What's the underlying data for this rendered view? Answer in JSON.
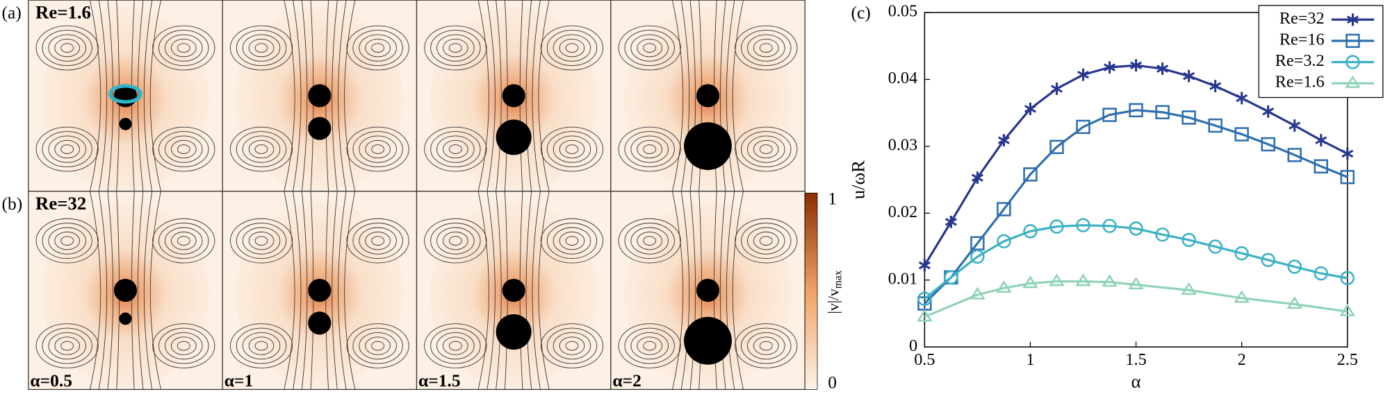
{
  "panels": {
    "row_labels": [
      "(a)",
      "(b)"
    ],
    "re_labels": [
      "Re=1.6",
      "Re=32"
    ],
    "alpha_labels": [
      "α=0.5",
      "α=1",
      "α=1.5",
      "α=2"
    ],
    "omega": "ω",
    "colorbar": {
      "top": "1",
      "bottom": "0",
      "label": "|v|/v",
      "label_sub": "max"
    }
  },
  "chart_data": {
    "type": "line",
    "panel_label": "(c)",
    "x_label": "α",
    "y_label": "u/ωR",
    "xlim": [
      0.5,
      2.5
    ],
    "xticks": [
      0.5,
      1,
      1.5,
      2,
      2.5
    ],
    "ylim": [
      0,
      0.05
    ],
    "yticks": [
      0,
      0.01,
      0.02,
      0.03,
      0.04,
      0.05
    ],
    "legend": "upper right",
    "series": [
      {
        "name": "Re=32",
        "color": "#27368f",
        "marker": "asterisk",
        "x": [
          0.5,
          0.625,
          0.75,
          0.875,
          1,
          1.125,
          1.25,
          1.375,
          1.5,
          1.625,
          1.75,
          1.875,
          2,
          2.125,
          2.25,
          2.375,
          2.5
        ],
        "values": [
          0.0122,
          0.0187,
          0.0253,
          0.0309,
          0.0356,
          0.0386,
          0.0407,
          0.0418,
          0.0421,
          0.0416,
          0.0405,
          0.039,
          0.0372,
          0.0352,
          0.0331,
          0.0309,
          0.0289
        ]
      },
      {
        "name": "Re=16",
        "color": "#2d6eae",
        "marker": "square",
        "x": [
          0.5,
          0.625,
          0.75,
          0.875,
          1,
          1.125,
          1.25,
          1.375,
          1.5,
          1.625,
          1.75,
          1.875,
          2,
          2.125,
          2.25,
          2.375,
          2.5
        ],
        "values": [
          0.0065,
          0.0104,
          0.0155,
          0.0206,
          0.0258,
          0.0299,
          0.0329,
          0.0347,
          0.0354,
          0.0351,
          0.0343,
          0.0331,
          0.0318,
          0.0303,
          0.0287,
          0.027,
          0.0254
        ]
      },
      {
        "name": "Re=3.2",
        "color": "#3bb1c3",
        "marker": "circle",
        "x": [
          0.5,
          0.625,
          0.75,
          0.875,
          1,
          1.125,
          1.25,
          1.375,
          1.5,
          1.625,
          1.75,
          1.875,
          2,
          2.125,
          2.25,
          2.375,
          2.5
        ],
        "values": [
          0.0072,
          0.0104,
          0.0135,
          0.0158,
          0.0173,
          0.018,
          0.0182,
          0.0181,
          0.0177,
          0.0168,
          0.016,
          0.015,
          0.014,
          0.013,
          0.012,
          0.011,
          0.0103
        ]
      },
      {
        "name": "Re=1.6",
        "color": "#8fd3b4",
        "marker": "triangle",
        "x": [
          0.5,
          0.75,
          0.875,
          1,
          1.125,
          1.25,
          1.375,
          1.5,
          1.75,
          2,
          2.25,
          2.5
        ],
        "values": [
          0.0045,
          0.0078,
          0.0088,
          0.0095,
          0.0098,
          0.0098,
          0.0097,
          0.0093,
          0.0085,
          0.0073,
          0.0064,
          0.0053
        ]
      }
    ]
  }
}
